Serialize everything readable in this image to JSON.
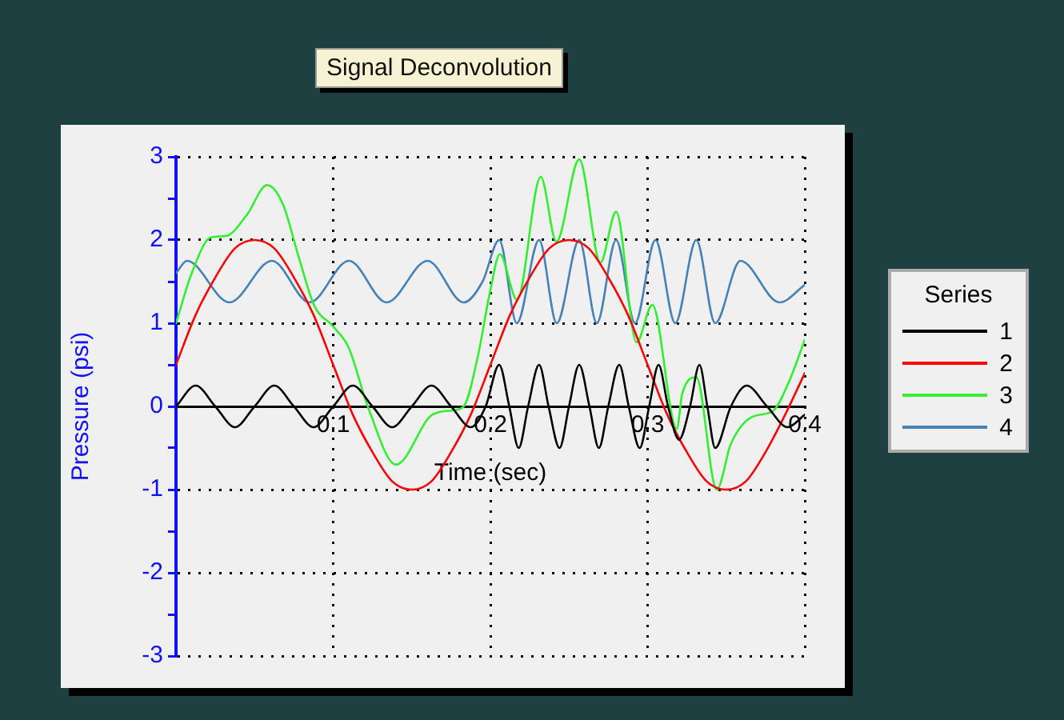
{
  "chart_data": {
    "type": "line",
    "title": "Signal Deconvolution",
    "xlabel": "Time (sec)",
    "ylabel": "Pressure (psi)",
    "legend_title": "Series",
    "legend": "right",
    "grid": true,
    "marker": "none",
    "line_style": "solid",
    "xlim": [
      0,
      0.4
    ],
    "xticks": [
      {
        "value": 0,
        "label": null
      },
      0.1,
      0.2,
      0.3,
      0.4
    ],
    "ylim": [
      -3,
      3
    ],
    "yticks": [
      -3,
      {
        "value": -2.5,
        "label": null
      },
      -2,
      {
        "value": -1.5,
        "label": null
      },
      -1,
      {
        "value": -0.5,
        "label": null
      },
      0,
      {
        "value": 0.5,
        "label": null
      },
      1,
      {
        "value": 1.5,
        "label": null
      },
      2,
      {
        "value": 2.5,
        "label": null
      },
      3
    ],
    "series": [
      {
        "name": "1",
        "color": "#000000",
        "x": [
          0,
          0.0125,
          0.025,
          0.0375,
          0.05,
          0.0625,
          0.075,
          0.0875,
          0.1,
          0.1125,
          0.125,
          0.1375,
          0.15,
          0.1625,
          0.175,
          0.1875,
          0.197,
          0.2056,
          0.212,
          0.218,
          0.224,
          0.231,
          0.237,
          0.244,
          0.25,
          0.2565,
          0.263,
          0.269,
          0.275,
          0.282,
          0.288,
          0.295,
          0.301,
          0.307,
          0.313,
          0.32,
          0.327,
          0.333,
          0.338,
          0.343,
          0.353,
          0.363,
          0.376,
          0.389,
          0.4
        ],
        "values": [
          0,
          0.25,
          0,
          -0.25,
          0,
          0.25,
          0,
          -0.25,
          0,
          0.25,
          0,
          -0.25,
          0,
          0.25,
          0,
          -0.25,
          0,
          0.5,
          0,
          -0.5,
          0,
          0.5,
          0,
          -0.5,
          0,
          0.5,
          0,
          -0.5,
          0,
          0.5,
          0,
          -0.5,
          0,
          0.5,
          0,
          -0.4,
          0,
          0.5,
          0,
          -0.5,
          0,
          0.25,
          0,
          -0.25,
          -0.1
        ]
      },
      {
        "name": "2",
        "color": "#ff0000",
        "x": [
          0,
          0.0125,
          0.025,
          0.0375,
          0.05,
          0.0625,
          0.075,
          0.0875,
          0.1,
          0.1125,
          0.125,
          0.1375,
          0.15,
          0.1625,
          0.175,
          0.1875,
          0.2,
          0.2125,
          0.225,
          0.2375,
          0.25,
          0.2625,
          0.275,
          0.2875,
          0.3,
          0.3125,
          0.325,
          0.3375,
          0.35,
          0.3625,
          0.375,
          0.3875,
          0.4
        ],
        "values": [
          0.5,
          1.1,
          1.55,
          1.9,
          2,
          1.9,
          1.55,
          1.1,
          0.5,
          -0.1,
          -0.55,
          -0.9,
          -1,
          -0.9,
          -0.55,
          -0.1,
          0.5,
          1.1,
          1.55,
          1.9,
          2,
          1.9,
          1.55,
          1.1,
          0.5,
          -0.1,
          -0.55,
          -0.9,
          -1,
          -0.9,
          -0.55,
          -0.1,
          0.4
        ]
      },
      {
        "name": "3",
        "color": "#33ee33",
        "x": [
          0,
          0.01,
          0.022,
          0.032,
          0.045,
          0.058,
          0.068,
          0.078,
          0.088,
          0.1,
          0.11,
          0.122,
          0.14,
          0.163,
          0.175,
          0.183,
          0.192,
          0.2,
          0.206,
          0.217,
          0.232,
          0.242,
          0.2565,
          0.27,
          0.28,
          0.293,
          0.303,
          0.3186,
          0.322,
          0.331,
          0.344,
          0.353,
          0.366,
          0.38,
          0.39,
          0.4
        ],
        "values": [
          1,
          1.6,
          2.03,
          2.05,
          2.3,
          2.66,
          2.43,
          1.8,
          1.21,
          0.96,
          0.7,
          0,
          -0.7,
          -0.1,
          -0.05,
          0,
          0.6,
          1.4,
          1.83,
          1.28,
          2.76,
          1.98,
          2.97,
          1.73,
          2.34,
          0.77,
          1.22,
          -0.27,
          0.15,
          0.35,
          -1,
          -0.45,
          -0.13,
          -0.05,
          0.3,
          0.8
        ]
      },
      {
        "name": "4",
        "color": "#4682b4",
        "x": [
          0,
          0.007,
          0.034,
          0.061,
          0.085,
          0.11,
          0.134,
          0.16,
          0.183,
          0.195,
          0.2056,
          0.2168,
          0.231,
          0.2422,
          0.2565,
          0.2677,
          0.28,
          0.292,
          0.305,
          0.3176,
          0.331,
          0.343,
          0.359,
          0.384,
          0.4
        ],
        "values": [
          1.6,
          1.75,
          1.25,
          1.75,
          1.25,
          1.75,
          1.25,
          1.75,
          1.25,
          1.5,
          2,
          1,
          2,
          1,
          2,
          1,
          2,
          1,
          2,
          1,
          2,
          1,
          1.75,
          1.25,
          1.46
        ]
      }
    ]
  }
}
